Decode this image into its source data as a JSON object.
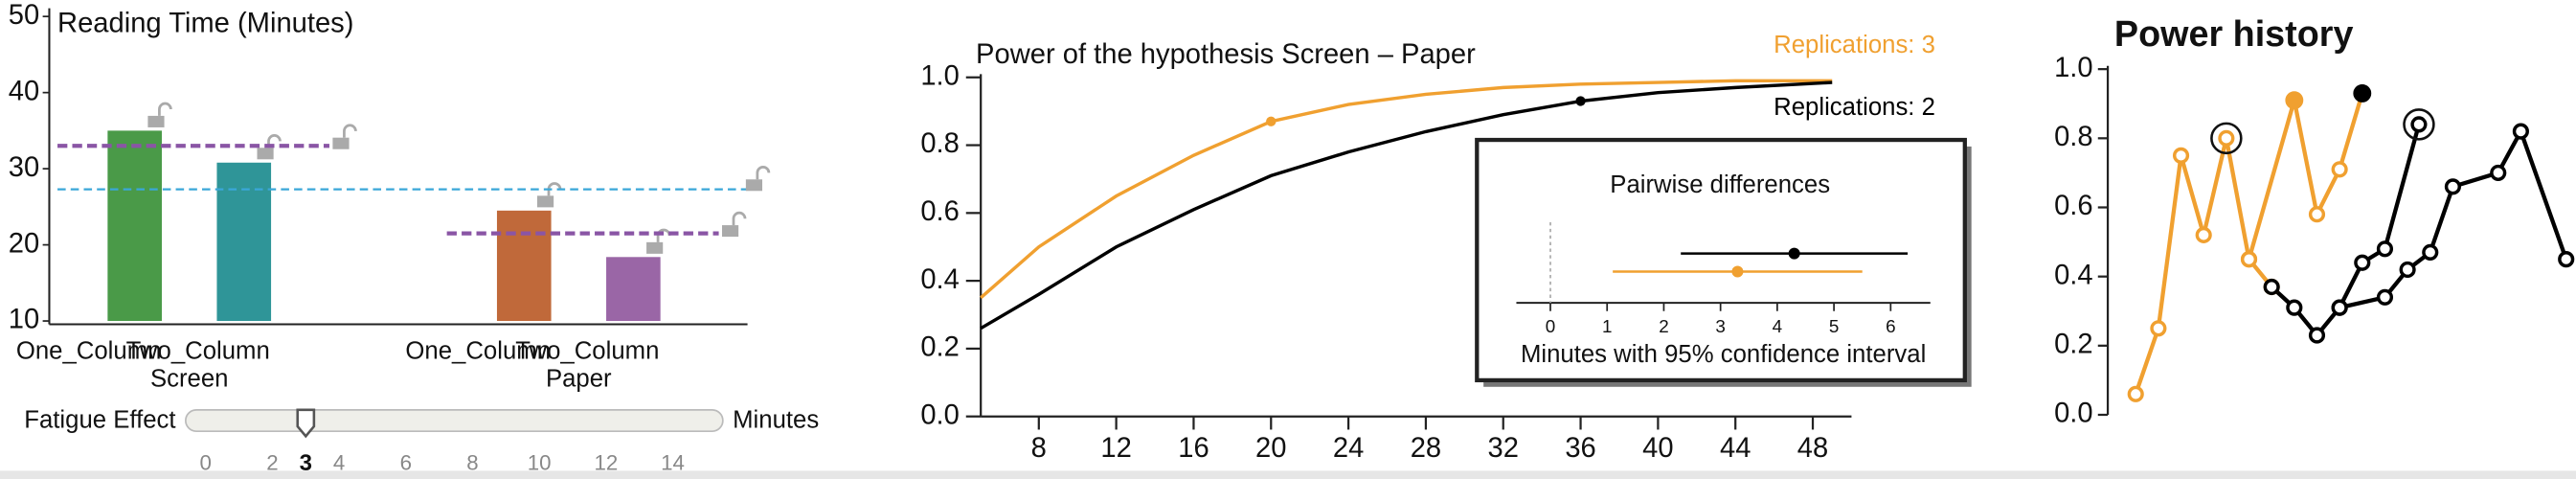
{
  "chart_data": [
    {
      "type": "bar",
      "title": "Reading Time (Minutes)",
      "groups": [
        {
          "label": "Screen",
          "categories": [
            "One_Column",
            "Two_Column"
          ],
          "values": [
            35,
            30.8
          ],
          "colors": [
            "#4a9a48",
            "#2f9598"
          ],
          "mean": 33,
          "mean_color": "#8a55a5"
        },
        {
          "label": "Paper",
          "categories": [
            "One_Column",
            "Two_Column"
          ],
          "values": [
            24.5,
            18.4
          ],
          "colors": [
            "#c0693a",
            "#9a66a6"
          ],
          "mean": 21.5,
          "mean_color": "#8a55a5"
        }
      ],
      "overall_mean": 27.3,
      "overall_mean_color": "#3aa7d8",
      "ylim": [
        10,
        50
      ],
      "yticks": [
        10,
        20,
        30,
        40,
        50
      ]
    },
    {
      "type": "line",
      "title": "Power of the hypothesis Screen – Paper",
      "x": [
        5,
        8,
        12,
        16,
        20,
        24,
        28,
        32,
        36,
        40,
        44,
        49
      ],
      "series": [
        {
          "name": "Replications: 3",
          "color": "#f0a030",
          "values": [
            0.35,
            0.5,
            0.65,
            0.77,
            0.87,
            0.92,
            0.95,
            0.97,
            0.98,
            0.985,
            0.99,
            0.99
          ],
          "marker_index": 4
        },
        {
          "name": "Replications: 2",
          "color": "#000000",
          "values": [
            0.26,
            0.36,
            0.5,
            0.61,
            0.71,
            0.78,
            0.84,
            0.89,
            0.93,
            0.955,
            0.97,
            0.985
          ],
          "marker_index": 8
        }
      ],
      "xlim": [
        5,
        50
      ],
      "ylim": [
        0,
        1
      ],
      "xticks": [
        8,
        12,
        16,
        20,
        24,
        28,
        32,
        36,
        40,
        44,
        48
      ],
      "yticks": [
        {
          "value": 0,
          "label": "0.0"
        },
        {
          "value": 0.2,
          "label": "0.2"
        },
        {
          "value": 0.4,
          "label": "0.4"
        },
        {
          "value": 0.6,
          "label": "0.6"
        },
        {
          "value": 0.8,
          "label": "0.8"
        },
        {
          "value": 1,
          "label": "1.0"
        }
      ],
      "inset": {
        "title": "Pairwise differences",
        "xlabel": "Minutes with 95% confidence interval",
        "xlim": [
          -0.6,
          6.7
        ],
        "xticks": [
          0,
          1,
          2,
          3,
          4,
          5,
          6
        ],
        "points": [
          {
            "color": "#000000",
            "value": 4.3,
            "ci": [
              2.3,
              6.3
            ]
          },
          {
            "color": "#f0a030",
            "value": 3.3,
            "ci": [
              1.1,
              5.5
            ]
          }
        ]
      }
    },
    {
      "type": "line",
      "title": "Power history",
      "xlim": [
        -0.5,
        19.5
      ],
      "ylim": [
        0,
        1
      ],
      "yticks": [
        {
          "value": 0,
          "label": "0.0"
        },
        {
          "value": 0.2,
          "label": "0.2"
        },
        {
          "value": 0.4,
          "label": "0.4"
        },
        {
          "value": 0.6,
          "label": "0.6"
        },
        {
          "value": 0.8,
          "label": "0.8"
        },
        {
          "value": 1,
          "label": "1.0"
        }
      ],
      "series": [
        {
          "color": "#f0a030",
          "x": [
            0,
            1,
            2,
            3,
            4,
            5,
            6
          ],
          "values": [
            0.06,
            0.25,
            0.75,
            0.52,
            0.8,
            0.45,
            0.37
          ],
          "circled_index": 4
        },
        {
          "color": "#f0a030",
          "x": [
            5,
            7,
            8,
            9,
            10
          ],
          "values": [
            0.45,
            0.91,
            0.58,
            0.71,
            0.93
          ],
          "filled_index": 1
        },
        {
          "color": "#000000",
          "x": [
            6,
            7,
            8,
            9,
            10,
            11,
            12.5
          ],
          "values": [
            0.37,
            0.31,
            0.23,
            0.31,
            0.44,
            0.48,
            0.84
          ],
          "circled_index": 6
        },
        {
          "color": "#000000",
          "x": [
            9,
            11,
            12,
            13,
            14,
            16,
            17,
            19
          ],
          "values": [
            0.31,
            0.34,
            0.42,
            0.47,
            0.66,
            0.7,
            0.82,
            0.45
          ]
        },
        {
          "color": "#000000",
          "x": [
            10
          ],
          "values": [
            0.93
          ],
          "filled_index": 0
        }
      ]
    }
  ],
  "slider": {
    "label": "Fatigue Effect",
    "unit": "Minutes",
    "lim": [
      -0.6,
      15.5
    ],
    "ticks": [
      0,
      2,
      4,
      6,
      8,
      10,
      12,
      14
    ],
    "value": 3
  }
}
